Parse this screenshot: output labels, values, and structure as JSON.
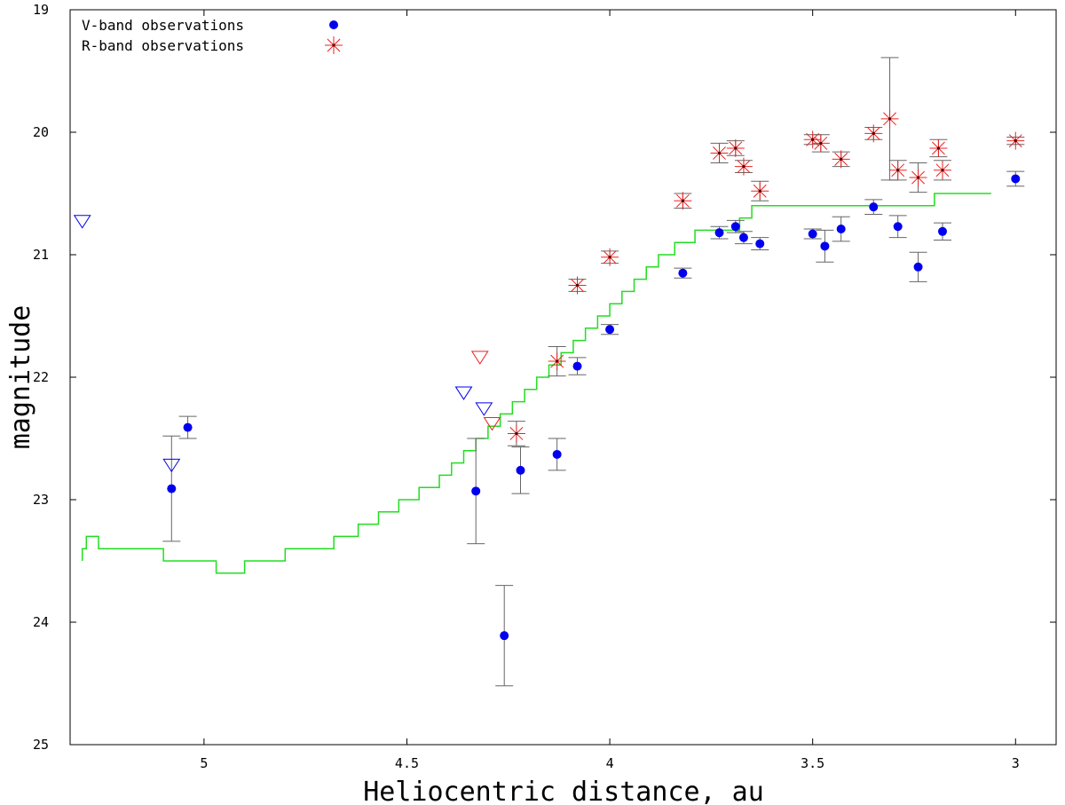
{
  "chart_data": {
    "type": "scatter",
    "title": "",
    "xlabel": "Heliocentric distance, au",
    "ylabel": "magnitude",
    "xlim": [
      5.33,
      2.9
    ],
    "ylim": [
      19,
      25
    ],
    "y_inverted": true,
    "x_inverted": true,
    "grid": false,
    "legend_position": "top-left",
    "x_ticks": [
      "5",
      "4.5",
      "4",
      "3.5",
      "3"
    ],
    "y_ticks": [
      "19",
      "20",
      "21",
      "22",
      "23",
      "24",
      "25"
    ],
    "colors": {
      "v_band": "#0000ee",
      "r_band": "#ee2222",
      "error_bar": "#666666",
      "model_curve": "#22dd22"
    },
    "series": [
      {
        "name": "V-band observations",
        "marker": "filled-circle",
        "points": [
          {
            "x": 5.08,
            "y": 22.91,
            "err": 0.43
          },
          {
            "x": 5.04,
            "y": 22.41,
            "err": 0.09
          },
          {
            "x": 4.33,
            "y": 22.93,
            "err": 0.43
          },
          {
            "x": 4.26,
            "y": 24.11,
            "err": 0.41
          },
          {
            "x": 4.22,
            "y": 22.76,
            "err": 0.19
          },
          {
            "x": 4.13,
            "y": 22.63,
            "err": 0.13
          },
          {
            "x": 4.08,
            "y": 21.91,
            "err": 0.07
          },
          {
            "x": 4.0,
            "y": 21.61,
            "err": 0.04
          },
          {
            "x": 3.82,
            "y": 21.15,
            "err": 0.04
          },
          {
            "x": 3.73,
            "y": 20.82,
            "err": 0.05
          },
          {
            "x": 3.69,
            "y": 20.77,
            "err": 0.05
          },
          {
            "x": 3.67,
            "y": 20.86,
            "err": 0.05
          },
          {
            "x": 3.63,
            "y": 20.91,
            "err": 0.05
          },
          {
            "x": 3.5,
            "y": 20.83,
            "err": 0.04
          },
          {
            "x": 3.47,
            "y": 20.93,
            "err": 0.13
          },
          {
            "x": 3.43,
            "y": 20.79,
            "err": 0.1
          },
          {
            "x": 3.35,
            "y": 20.61,
            "err": 0.06
          },
          {
            "x": 3.29,
            "y": 20.77,
            "err": 0.09
          },
          {
            "x": 3.24,
            "y": 21.1,
            "err": 0.12
          },
          {
            "x": 3.18,
            "y": 20.81,
            "err": 0.07
          },
          {
            "x": 3.0,
            "y": 20.38,
            "err": 0.06
          }
        ],
        "upper_limits": [
          {
            "x": 5.3,
            "y": 20.73
          },
          {
            "x": 5.08,
            "y": 22.72
          },
          {
            "x": 4.36,
            "y": 22.13
          },
          {
            "x": 4.31,
            "y": 22.26
          }
        ]
      },
      {
        "name": "R-band observations",
        "marker": "asterisk",
        "points": [
          {
            "x": 4.23,
            "y": 22.46,
            "err": 0.1
          },
          {
            "x": 4.13,
            "y": 21.87,
            "err": 0.12
          },
          {
            "x": 4.08,
            "y": 21.25,
            "err": 0.05
          },
          {
            "x": 4.0,
            "y": 21.02,
            "err": 0.05
          },
          {
            "x": 3.82,
            "y": 20.56,
            "err": 0.06
          },
          {
            "x": 3.73,
            "y": 20.17,
            "err": 0.08
          },
          {
            "x": 3.69,
            "y": 20.13,
            "err": 0.06
          },
          {
            "x": 3.67,
            "y": 20.28,
            "err": 0.05
          },
          {
            "x": 3.63,
            "y": 20.48,
            "err": 0.08
          },
          {
            "x": 3.5,
            "y": 20.06,
            "err": 0.04
          },
          {
            "x": 3.48,
            "y": 20.09,
            "err": 0.07
          },
          {
            "x": 3.43,
            "y": 20.22,
            "err": 0.06
          },
          {
            "x": 3.35,
            "y": 20.01,
            "err": 0.05
          },
          {
            "x": 3.31,
            "y": 19.89,
            "err": 0.5
          },
          {
            "x": 3.29,
            "y": 20.31,
            "err": 0.08
          },
          {
            "x": 3.24,
            "y": 20.37,
            "err": 0.12
          },
          {
            "x": 3.19,
            "y": 20.13,
            "err": 0.07
          },
          {
            "x": 3.18,
            "y": 20.31,
            "err": 0.08
          },
          {
            "x": 3.0,
            "y": 20.07,
            "err": 0.03
          }
        ],
        "upper_limits": [
          {
            "x": 4.32,
            "y": 21.84
          },
          {
            "x": 4.29,
            "y": 22.38
          }
        ]
      },
      {
        "name": "",
        "marker": "step-line",
        "steps": [
          [
            5.3,
            23.5
          ],
          [
            5.29,
            23.4
          ],
          [
            5.26,
            23.3
          ],
          [
            5.1,
            23.4
          ],
          [
            5.02,
            23.5
          ],
          [
            4.97,
            23.5
          ],
          [
            4.9,
            23.6
          ],
          [
            4.8,
            23.5
          ],
          [
            4.68,
            23.4
          ],
          [
            4.62,
            23.3
          ],
          [
            4.57,
            23.2
          ],
          [
            4.52,
            23.1
          ],
          [
            4.47,
            23.0
          ],
          [
            4.42,
            22.9
          ],
          [
            4.39,
            22.8
          ],
          [
            4.36,
            22.7
          ],
          [
            4.33,
            22.6
          ],
          [
            4.3,
            22.5
          ],
          [
            4.27,
            22.4
          ],
          [
            4.24,
            22.3
          ],
          [
            4.21,
            22.2
          ],
          [
            4.18,
            22.1
          ],
          [
            4.15,
            22.0
          ],
          [
            4.12,
            21.9
          ],
          [
            4.09,
            21.8
          ],
          [
            4.06,
            21.7
          ],
          [
            4.03,
            21.6
          ],
          [
            4.0,
            21.5
          ],
          [
            3.97,
            21.4
          ],
          [
            3.94,
            21.3
          ],
          [
            3.91,
            21.2
          ],
          [
            3.88,
            21.1
          ],
          [
            3.84,
            21.0
          ],
          [
            3.79,
            20.9
          ],
          [
            3.75,
            20.8
          ],
          [
            3.68,
            20.8
          ],
          [
            3.65,
            20.7
          ],
          [
            3.46,
            20.6
          ],
          [
            3.32,
            20.6
          ],
          [
            3.2,
            20.6
          ],
          [
            3.16,
            20.5
          ],
          [
            3.06,
            20.5
          ]
        ]
      }
    ]
  }
}
